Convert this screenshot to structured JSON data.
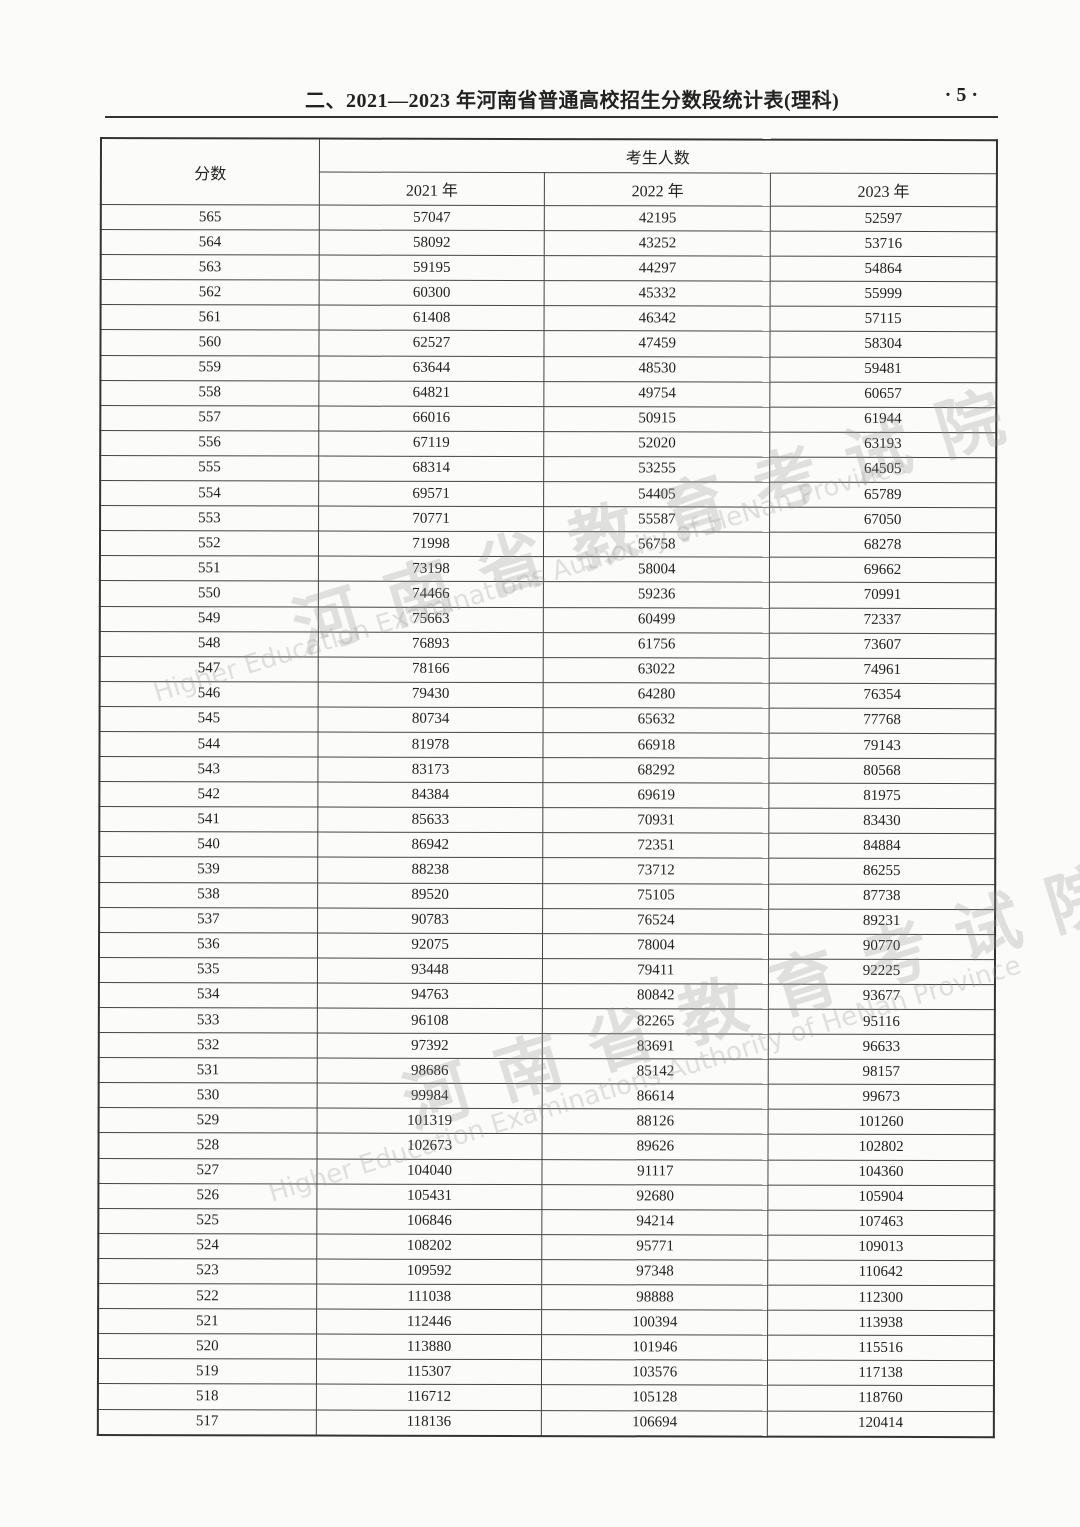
{
  "header": {
    "title": "二、2021—2023 年河南省普通高校招生分数段统计表(理科)",
    "page_number": "· 5 ·"
  },
  "table": {
    "score_header": "分数",
    "group_header": "考生人数",
    "year_headers": [
      "2021 年",
      "2022 年",
      "2023 年"
    ],
    "rows": [
      [
        "565",
        "57047",
        "42195",
        "52597"
      ],
      [
        "564",
        "58092",
        "43252",
        "53716"
      ],
      [
        "563",
        "59195",
        "44297",
        "54864"
      ],
      [
        "562",
        "60300",
        "45332",
        "55999"
      ],
      [
        "561",
        "61408",
        "46342",
        "57115"
      ],
      [
        "560",
        "62527",
        "47459",
        "58304"
      ],
      [
        "559",
        "63644",
        "48530",
        "59481"
      ],
      [
        "558",
        "64821",
        "49754",
        "60657"
      ],
      [
        "557",
        "66016",
        "50915",
        "61944"
      ],
      [
        "556",
        "67119",
        "52020",
        "63193"
      ],
      [
        "555",
        "68314",
        "53255",
        "64505"
      ],
      [
        "554",
        "69571",
        "54405",
        "65789"
      ],
      [
        "553",
        "70771",
        "55587",
        "67050"
      ],
      [
        "552",
        "71998",
        "56758",
        "68278"
      ],
      [
        "551",
        "73198",
        "58004",
        "69662"
      ],
      [
        "550",
        "74466",
        "59236",
        "70991"
      ],
      [
        "549",
        "75663",
        "60499",
        "72337"
      ],
      [
        "548",
        "76893",
        "61756",
        "73607"
      ],
      [
        "547",
        "78166",
        "63022",
        "74961"
      ],
      [
        "546",
        "79430",
        "64280",
        "76354"
      ],
      [
        "545",
        "80734",
        "65632",
        "77768"
      ],
      [
        "544",
        "81978",
        "66918",
        "79143"
      ],
      [
        "543",
        "83173",
        "68292",
        "80568"
      ],
      [
        "542",
        "84384",
        "69619",
        "81975"
      ],
      [
        "541",
        "85633",
        "70931",
        "83430"
      ],
      [
        "540",
        "86942",
        "72351",
        "84884"
      ],
      [
        "539",
        "88238",
        "73712",
        "86255"
      ],
      [
        "538",
        "89520",
        "75105",
        "87738"
      ],
      [
        "537",
        "90783",
        "76524",
        "89231"
      ],
      [
        "536",
        "92075",
        "78004",
        "90770"
      ],
      [
        "535",
        "93448",
        "79411",
        "92225"
      ],
      [
        "534",
        "94763",
        "80842",
        "93677"
      ],
      [
        "533",
        "96108",
        "82265",
        "95116"
      ],
      [
        "532",
        "97392",
        "83691",
        "96633"
      ],
      [
        "531",
        "98686",
        "85142",
        "98157"
      ],
      [
        "530",
        "99984",
        "86614",
        "99673"
      ],
      [
        "529",
        "101319",
        "88126",
        "101260"
      ],
      [
        "528",
        "102673",
        "89626",
        "102802"
      ],
      [
        "527",
        "104040",
        "91117",
        "104360"
      ],
      [
        "526",
        "105431",
        "92680",
        "105904"
      ],
      [
        "525",
        "106846",
        "94214",
        "107463"
      ],
      [
        "524",
        "108202",
        "95771",
        "109013"
      ],
      [
        "523",
        "109592",
        "97348",
        "110642"
      ],
      [
        "522",
        "111038",
        "98888",
        "112300"
      ],
      [
        "521",
        "112446",
        "100394",
        "113938"
      ],
      [
        "520",
        "113880",
        "101946",
        "115516"
      ],
      [
        "519",
        "115307",
        "103576",
        "117138"
      ],
      [
        "518",
        "116712",
        "105128",
        "118760"
      ],
      [
        "517",
        "118136",
        "106694",
        "120414"
      ]
    ]
  },
  "watermark": {
    "logo": "HEEA",
    "cn": "河南省教育考试院",
    "en": "Higher Education Examinations Authority of HeNan Province"
  }
}
